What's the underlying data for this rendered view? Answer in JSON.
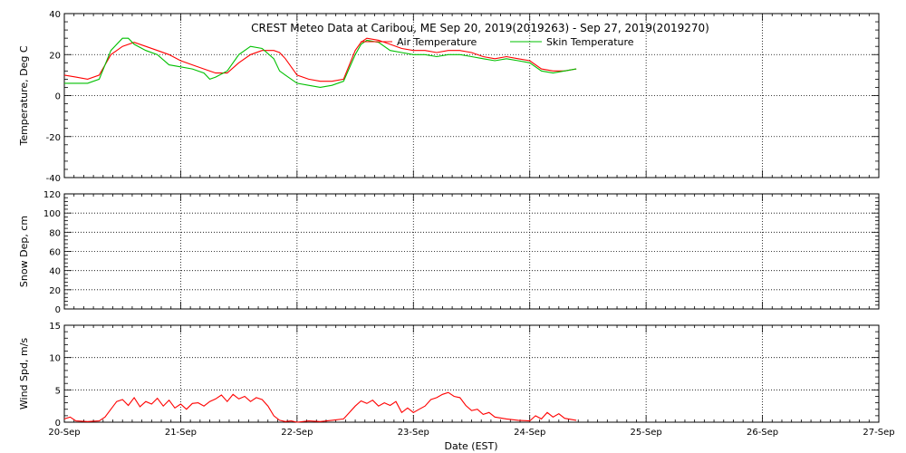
{
  "chart_data": {
    "type": "line",
    "title": "CREST Meteo Data at Caribou, ME   Sep 20, 2019(2019263) - Sep 27, 2019(2019270)",
    "xlabel": "Date (EST)",
    "x_ticks": [
      "20-Sep",
      "21-Sep",
      "22-Sep",
      "23-Sep",
      "24-Sep",
      "25-Sep",
      "26-Sep",
      "27-Sep"
    ],
    "xlim": [
      0,
      7
    ],
    "grid": true,
    "legend_position": "top-center",
    "panels": [
      {
        "ylabel": "Temperature, Deg C",
        "ylim": [
          -40,
          40
        ],
        "y_ticks": [
          -40,
          -20,
          0,
          20,
          40
        ],
        "series": [
          {
            "name": "Air Temperature",
            "color": "#ff0000",
            "x": [
              0.0,
              0.1,
              0.2,
              0.3,
              0.4,
              0.5,
              0.6,
              0.7,
              0.8,
              0.9,
              1.0,
              1.1,
              1.2,
              1.3,
              1.4,
              1.5,
              1.6,
              1.7,
              1.8,
              1.85,
              1.9,
              2.0,
              2.1,
              2.2,
              2.3,
              2.4,
              2.5,
              2.55,
              2.6,
              2.7,
              2.8,
              2.9,
              3.0,
              3.1,
              3.2,
              3.3,
              3.4,
              3.5,
              3.6,
              3.7,
              3.8,
              3.9,
              4.0,
              4.1,
              4.2,
              4.3,
              4.4
            ],
            "y": [
              10,
              9,
              8,
              10,
              20,
              24,
              26,
              24,
              22,
              20,
              17,
              15,
              13,
              11,
              11,
              16,
              20,
              22,
              22,
              21,
              18,
              10,
              8,
              7,
              7,
              8,
              22,
              26,
              28,
              27,
              25,
              23,
              22,
              22,
              21,
              22,
              22,
              21,
              19,
              18,
              19,
              18,
              17,
              13,
              12,
              12,
              13
            ]
          },
          {
            "name": "Skin Temperature",
            "color": "#00c000",
            "x": [
              0.0,
              0.1,
              0.2,
              0.3,
              0.4,
              0.5,
              0.55,
              0.6,
              0.7,
              0.8,
              0.9,
              1.0,
              1.1,
              1.2,
              1.25,
              1.3,
              1.4,
              1.5,
              1.6,
              1.7,
              1.8,
              1.85,
              1.9,
              2.0,
              2.1,
              2.2,
              2.3,
              2.4,
              2.5,
              2.55,
              2.6,
              2.7,
              2.8,
              2.9,
              3.0,
              3.1,
              3.2,
              3.3,
              3.4,
              3.5,
              3.6,
              3.7,
              3.8,
              3.9,
              4.0,
              4.1,
              4.2,
              4.3,
              4.4
            ],
            "y": [
              6,
              6,
              6,
              8,
              22,
              28,
              28,
              25,
              22,
              20,
              15,
              14,
              13,
              11,
              8,
              9,
              12,
              20,
              24,
              23,
              18,
              12,
              10,
              6,
              5,
              4,
              5,
              7,
              20,
              25,
              27,
              26,
              22,
              21,
              20,
              20,
              19,
              20,
              20,
              19,
              18,
              17,
              18,
              17,
              16,
              12,
              11,
              12,
              13
            ]
          }
        ]
      },
      {
        "ylabel": "Snow Dep, cm",
        "ylim": [
          0,
          120
        ],
        "y_ticks": [
          0,
          20,
          40,
          60,
          80,
          100,
          120
        ],
        "series": []
      },
      {
        "ylabel": "Wind Spd, m/s",
        "ylim": [
          0,
          15
        ],
        "y_ticks": [
          0,
          5,
          10,
          15
        ],
        "series": [
          {
            "color": "#ff0000",
            "x": [
              0.0,
              0.05,
              0.1,
              0.2,
              0.3,
              0.35,
              0.4,
              0.45,
              0.5,
              0.55,
              0.6,
              0.65,
              0.7,
              0.75,
              0.8,
              0.85,
              0.9,
              0.95,
              1.0,
              1.05,
              1.1,
              1.15,
              1.2,
              1.25,
              1.3,
              1.35,
              1.4,
              1.45,
              1.5,
              1.55,
              1.6,
              1.65,
              1.7,
              1.75,
              1.8,
              1.85,
              1.9,
              1.95,
              2.0,
              2.1,
              2.2,
              2.3,
              2.4,
              2.45,
              2.5,
              2.55,
              2.6,
              2.65,
              2.7,
              2.75,
              2.8,
              2.85,
              2.9,
              2.95,
              3.0,
              3.05,
              3.1,
              3.15,
              3.2,
              3.25,
              3.3,
              3.35,
              3.4,
              3.45,
              3.5,
              3.55,
              3.6,
              3.65,
              3.7,
              3.8,
              3.9,
              4.0,
              4.05,
              4.1,
              4.15,
              4.2,
              4.25,
              4.3,
              4.4
            ],
            "y": [
              0.5,
              0.8,
              0.2,
              0.1,
              0.2,
              0.8,
              2.0,
              3.2,
              3.5,
              2.6,
              3.8,
              2.4,
              3.2,
              2.8,
              3.7,
              2.5,
              3.4,
              2.2,
              2.8,
              2.0,
              2.9,
              3.0,
              2.5,
              3.2,
              3.6,
              4.2,
              3.2,
              4.3,
              3.6,
              4.0,
              3.2,
              3.8,
              3.5,
              2.5,
              1.0,
              0.3,
              0.1,
              0.2,
              0.0,
              0.2,
              0.1,
              0.3,
              0.5,
              1.5,
              2.5,
              3.3,
              2.9,
              3.4,
              2.5,
              3.0,
              2.6,
              3.2,
              1.5,
              2.2,
              1.5,
              2.0,
              2.5,
              3.5,
              3.8,
              4.3,
              4.6,
              4.0,
              3.8,
              2.6,
              1.8,
              2.0,
              1.2,
              1.5,
              0.8,
              0.5,
              0.3,
              0.2,
              1.0,
              0.5,
              1.5,
              0.8,
              1.3,
              0.6,
              0.3
            ]
          }
        ]
      }
    ]
  }
}
